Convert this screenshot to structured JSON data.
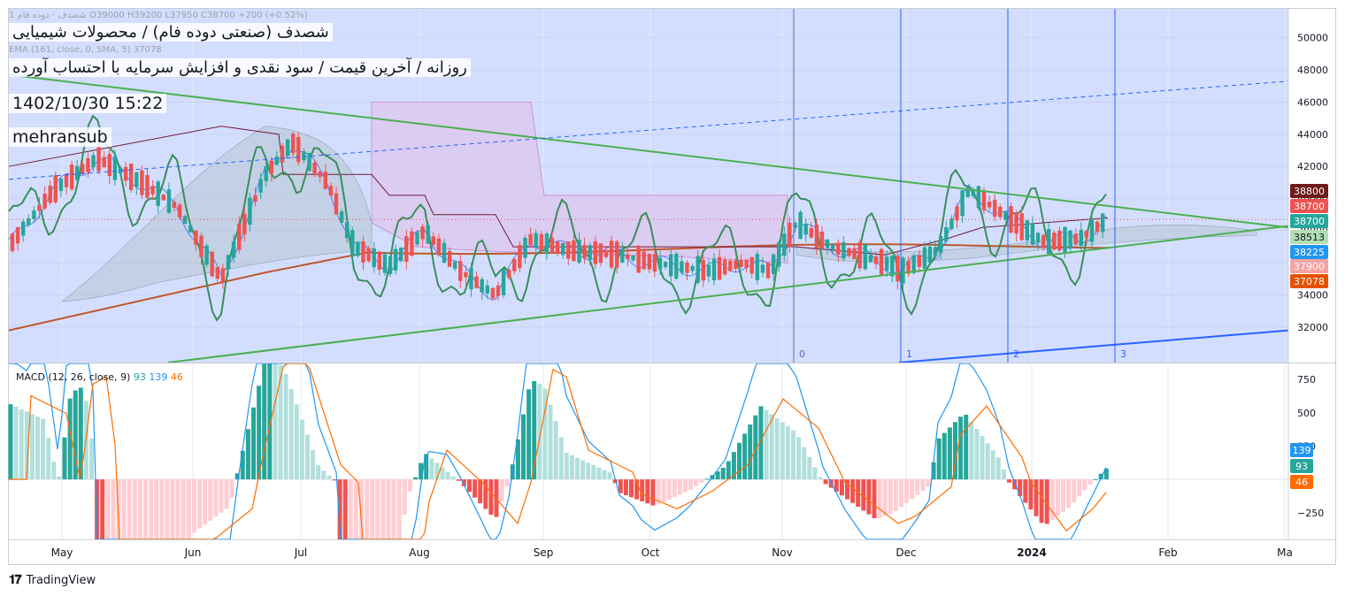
{
  "header": {
    "ohlc_line": "1 شصدف · دوده فام O39000 H39200 L37950 C38700 +200 (+0.52%)",
    "ema_line": "EMA (161, close, 0, SMA, 5) 37078",
    "title": "شصدف (صنعتی دوده فام) / محصولات شیمیایی",
    "subtitle": "روزانه / آخرین قیمت / سود نقدی و افزایش سرمایه با احتساب آورده",
    "datetime": "1402/10/30 15:22",
    "author": "mehransub"
  },
  "macd_legend": {
    "label": "MACD (12, 26, close, 9)",
    "hist": "93",
    "macd": "139",
    "signal": "46"
  },
  "brand": {
    "name": "TradingView",
    "logo": "tradingview-logo-icon"
  },
  "colors": {
    "up": "#26a69a",
    "down": "#ef5350",
    "up_light": "#b2dfdb",
    "down_light": "#ffcdd2",
    "highlight": "#d1dcff",
    "kijun": "#6d1b3a",
    "ema": "#c0562a",
    "wedge": "#4caf50",
    "oscillator": "#388e5a",
    "fib": "#2962ff",
    "macd": "#2196f3",
    "signal": "#ff6d00"
  },
  "chart_data": [
    {
      "type": "candlestick",
      "title": "شصدف (صنعتی دوده فام) / محصولات شیمیایی",
      "subtitle": "روزانه / آخرین قیمت / سود نقدی و افزایش سرمایه با احتساب آورده",
      "x_tick_labels": [
        "May",
        "Jun",
        "Jul",
        "Aug",
        "Sep",
        "Oct",
        "Nov",
        "Dec",
        "2024",
        "Feb",
        "Ma"
      ],
      "y_tick_labels": [
        "50000",
        "48000",
        "46000",
        "44000",
        "42000",
        "40000",
        "38000",
        "36000",
        "34000",
        "32000"
      ],
      "ylim": [
        29800,
        51800
      ],
      "last_bar": {
        "open": 39000,
        "high": 39200,
        "low": 37950,
        "close": 38700,
        "change": "+200 (+0.52%)"
      },
      "price_labels": [
        {
          "text": "38800",
          "value": 38800,
          "color": "#6d1b1b"
        },
        {
          "text": "38700",
          "value": 38700,
          "color": "#ef5350"
        },
        {
          "text": "38700",
          "value": 38700,
          "color": "#26a69a"
        },
        {
          "text": "38513",
          "value": 38513,
          "color": "#b2dfb5"
        },
        {
          "text": "38225",
          "value": 38225,
          "color": "#2196f3"
        },
        {
          "text": "37900",
          "value": 37900,
          "color": "#f5a3a3"
        },
        {
          "text": "37078",
          "value": 37078,
          "color": "#e65100"
        }
      ],
      "fib_time_zones": [
        "0",
        "1",
        "2",
        "3"
      ],
      "series": [
        {
          "name": "EMA (161, close, 0, SMA, 5)",
          "last": 37078
        },
        {
          "name": "Ichimoku cloud"
        },
        {
          "name": "Trend lines (symmetrical triangle)"
        }
      ],
      "grid": true
    },
    {
      "type": "bar",
      "title": "MACD (12, 26, close, 9)",
      "y_tick_labels": [
        "750",
        "500",
        "250",
        "−250"
      ],
      "ylim": [
        -450,
        870
      ],
      "series": [
        {
          "name": "Histogram",
          "last": 93
        },
        {
          "name": "MACD",
          "last": 139
        },
        {
          "name": "Signal",
          "last": 46
        }
      ]
    }
  ]
}
